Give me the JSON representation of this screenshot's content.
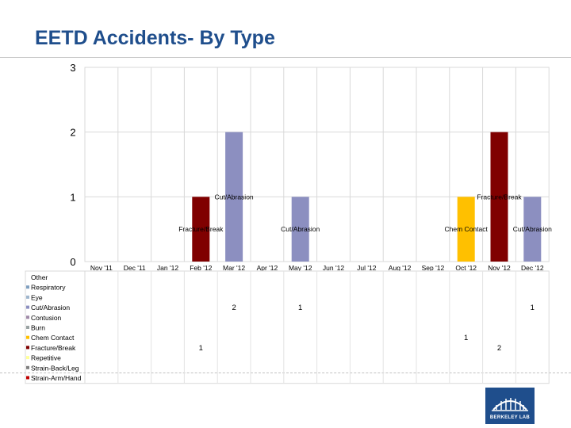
{
  "page": {
    "title": "EETD Accidents- By Type",
    "logo_text": "BERKELEY LAB"
  },
  "chart_data": {
    "type": "bar",
    "title": "EETD Accidents- By Type",
    "xlabel": "",
    "ylabel": "",
    "ylim": [
      0,
      3
    ],
    "yticks": [
      0,
      1,
      2,
      3
    ],
    "grid": true,
    "categories": [
      "Nov '11",
      "Dec '11",
      "Jan '12",
      "Feb '12",
      "Mar '12",
      "Apr '12",
      "May '12",
      "Jun '12",
      "Jul '12",
      "Aug '12",
      "Sep '12",
      "Oct '12",
      "Nov '12",
      "Dec '12"
    ],
    "series": [
      {
        "name": "Other",
        "color": "#ffffff",
        "values": [
          0,
          0,
          0,
          0,
          0,
          0,
          0,
          0,
          0,
          0,
          0,
          0,
          0,
          0
        ]
      },
      {
        "name": "Respiratory",
        "color": "#7f9fbf",
        "values": [
          0,
          0,
          0,
          0,
          0,
          0,
          0,
          0,
          0,
          0,
          0,
          0,
          0,
          0
        ]
      },
      {
        "name": "Eye",
        "color": "#9fb6cd",
        "values": [
          0,
          0,
          0,
          0,
          0,
          0,
          0,
          0,
          0,
          0,
          0,
          0,
          0,
          0
        ]
      },
      {
        "name": "Cut/Abrasion",
        "color": "#8c8fc0",
        "values": [
          0,
          0,
          0,
          0,
          2,
          0,
          1,
          0,
          0,
          0,
          0,
          0,
          0,
          1
        ]
      },
      {
        "name": "Contusion",
        "color": "#a08aa8",
        "values": [
          0,
          0,
          0,
          0,
          0,
          0,
          0,
          0,
          0,
          0,
          0,
          0,
          0,
          0
        ]
      },
      {
        "name": "Burn",
        "color": "#9aa3a3",
        "values": [
          0,
          0,
          0,
          0,
          0,
          0,
          0,
          0,
          0,
          0,
          0,
          0,
          0,
          0
        ]
      },
      {
        "name": "Chem Contact",
        "color": "#ffc000",
        "values": [
          0,
          0,
          0,
          0,
          0,
          0,
          0,
          0,
          0,
          0,
          0,
          1,
          0,
          0
        ]
      },
      {
        "name": "Fracture/Break",
        "color": "#800000",
        "values": [
          0,
          0,
          0,
          1,
          0,
          0,
          0,
          0,
          0,
          0,
          0,
          0,
          2,
          0
        ]
      },
      {
        "name": "Repetitive",
        "color": "#ffff99",
        "values": [
          0,
          0,
          0,
          0,
          0,
          0,
          0,
          0,
          0,
          0,
          0,
          0,
          0,
          0
        ]
      },
      {
        "name": "Strain-Back/Leg",
        "color": "#7f7f7f",
        "values": [
          0,
          0,
          0,
          0,
          0,
          0,
          0,
          0,
          0,
          0,
          0,
          0,
          0,
          0
        ]
      },
      {
        "name": "Strain-Arm/Hand",
        "color": "#c00000",
        "values": [
          0,
          0,
          0,
          0,
          0,
          0,
          0,
          0,
          0,
          0,
          0,
          0,
          0,
          0
        ]
      }
    ],
    "annotations": [
      {
        "text": "Cut/Abrasion",
        "category": "Mar '12",
        "value": 1
      },
      {
        "text": "Fracture/Break",
        "category": "Feb '12",
        "value": 0.5
      },
      {
        "text": "Cut/Abrasion",
        "category": "May '12",
        "value": 0.5
      },
      {
        "text": "Fracture/Break",
        "category": "Nov '12",
        "value": 1
      },
      {
        "text": "Chem Contact",
        "category": "Oct '12",
        "value": 0.5
      },
      {
        "text": "Cut/Abrasion",
        "category": "Dec '12",
        "value": 0.5
      }
    ]
  }
}
